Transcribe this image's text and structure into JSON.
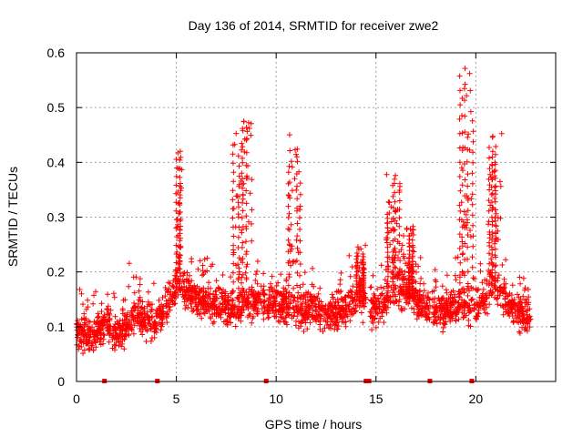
{
  "chart_data": {
    "type": "scatter",
    "title": "Day 136 of 2014, SRMTID for receiver zwe2",
    "xlabel": "GPS time / hours",
    "ylabel": "SRMTID / TECUs",
    "xlim": [
      0,
      24
    ],
    "ylim": [
      0,
      0.6
    ],
    "grid": true,
    "marker": "+",
    "color": "#ff0000",
    "x_ticks": [
      "0",
      "5",
      "10",
      "15",
      "20"
    ],
    "x_tick_values": [
      0,
      5,
      10,
      15,
      20
    ],
    "y_ticks": [
      "0",
      "0.1",
      "0.2",
      "0.3",
      "0.4",
      "0.5",
      "0.6"
    ],
    "y_tick_values": [
      0,
      0.1,
      0.2,
      0.3,
      0.4,
      0.5,
      0.6
    ],
    "zero_marks_x": [
      1.4,
      4.05,
      9.5,
      14.5,
      14.65,
      17.7,
      19.8
    ],
    "baseline": [
      [
        0.0,
        0.09
      ],
      [
        0.8,
        0.08
      ],
      [
        1.5,
        0.11
      ],
      [
        2.0,
        0.08
      ],
      [
        3.0,
        0.12
      ],
      [
        4.0,
        0.1
      ],
      [
        4.5,
        0.14
      ],
      [
        5.0,
        0.17
      ],
      [
        6.0,
        0.15
      ],
      [
        7.0,
        0.14
      ],
      [
        8.0,
        0.13
      ],
      [
        9.0,
        0.15
      ],
      [
        10.0,
        0.14
      ],
      [
        11.0,
        0.13
      ],
      [
        12.0,
        0.13
      ],
      [
        13.0,
        0.12
      ],
      [
        14.0,
        0.15
      ],
      [
        15.0,
        0.13
      ],
      [
        16.0,
        0.16
      ],
      [
        17.0,
        0.15
      ],
      [
        18.0,
        0.12
      ],
      [
        19.0,
        0.14
      ],
      [
        20.0,
        0.13
      ],
      [
        21.0,
        0.17
      ],
      [
        22.0,
        0.13
      ],
      [
        22.7,
        0.12
      ]
    ],
    "bursts": [
      {
        "x": [
          5.0,
          5.3
        ],
        "ymax": 0.42
      },
      {
        "x": [
          7.8,
          8.8
        ],
        "ymax": 0.48
      },
      {
        "x": [
          10.6,
          11.2
        ],
        "ymax": 0.47
      },
      {
        "x": [
          15.5,
          16.2
        ],
        "ymax": 0.38
      },
      {
        "x": [
          16.3,
          16.9
        ],
        "ymax": 0.29
      },
      {
        "x": [
          19.2,
          19.9
        ],
        "ymax": 0.58
      },
      {
        "x": [
          20.5,
          21.3
        ],
        "ymax": 0.46
      },
      {
        "x": [
          14.0,
          14.6
        ],
        "ymax": 0.25
      }
    ],
    "gaps": [
      [
        1.4,
        1.5
      ],
      [
        4.05,
        4.1
      ],
      [
        9.45,
        9.55
      ],
      [
        14.5,
        14.7
      ],
      [
        17.7,
        17.8
      ],
      [
        19.8,
        19.9
      ]
    ]
  }
}
